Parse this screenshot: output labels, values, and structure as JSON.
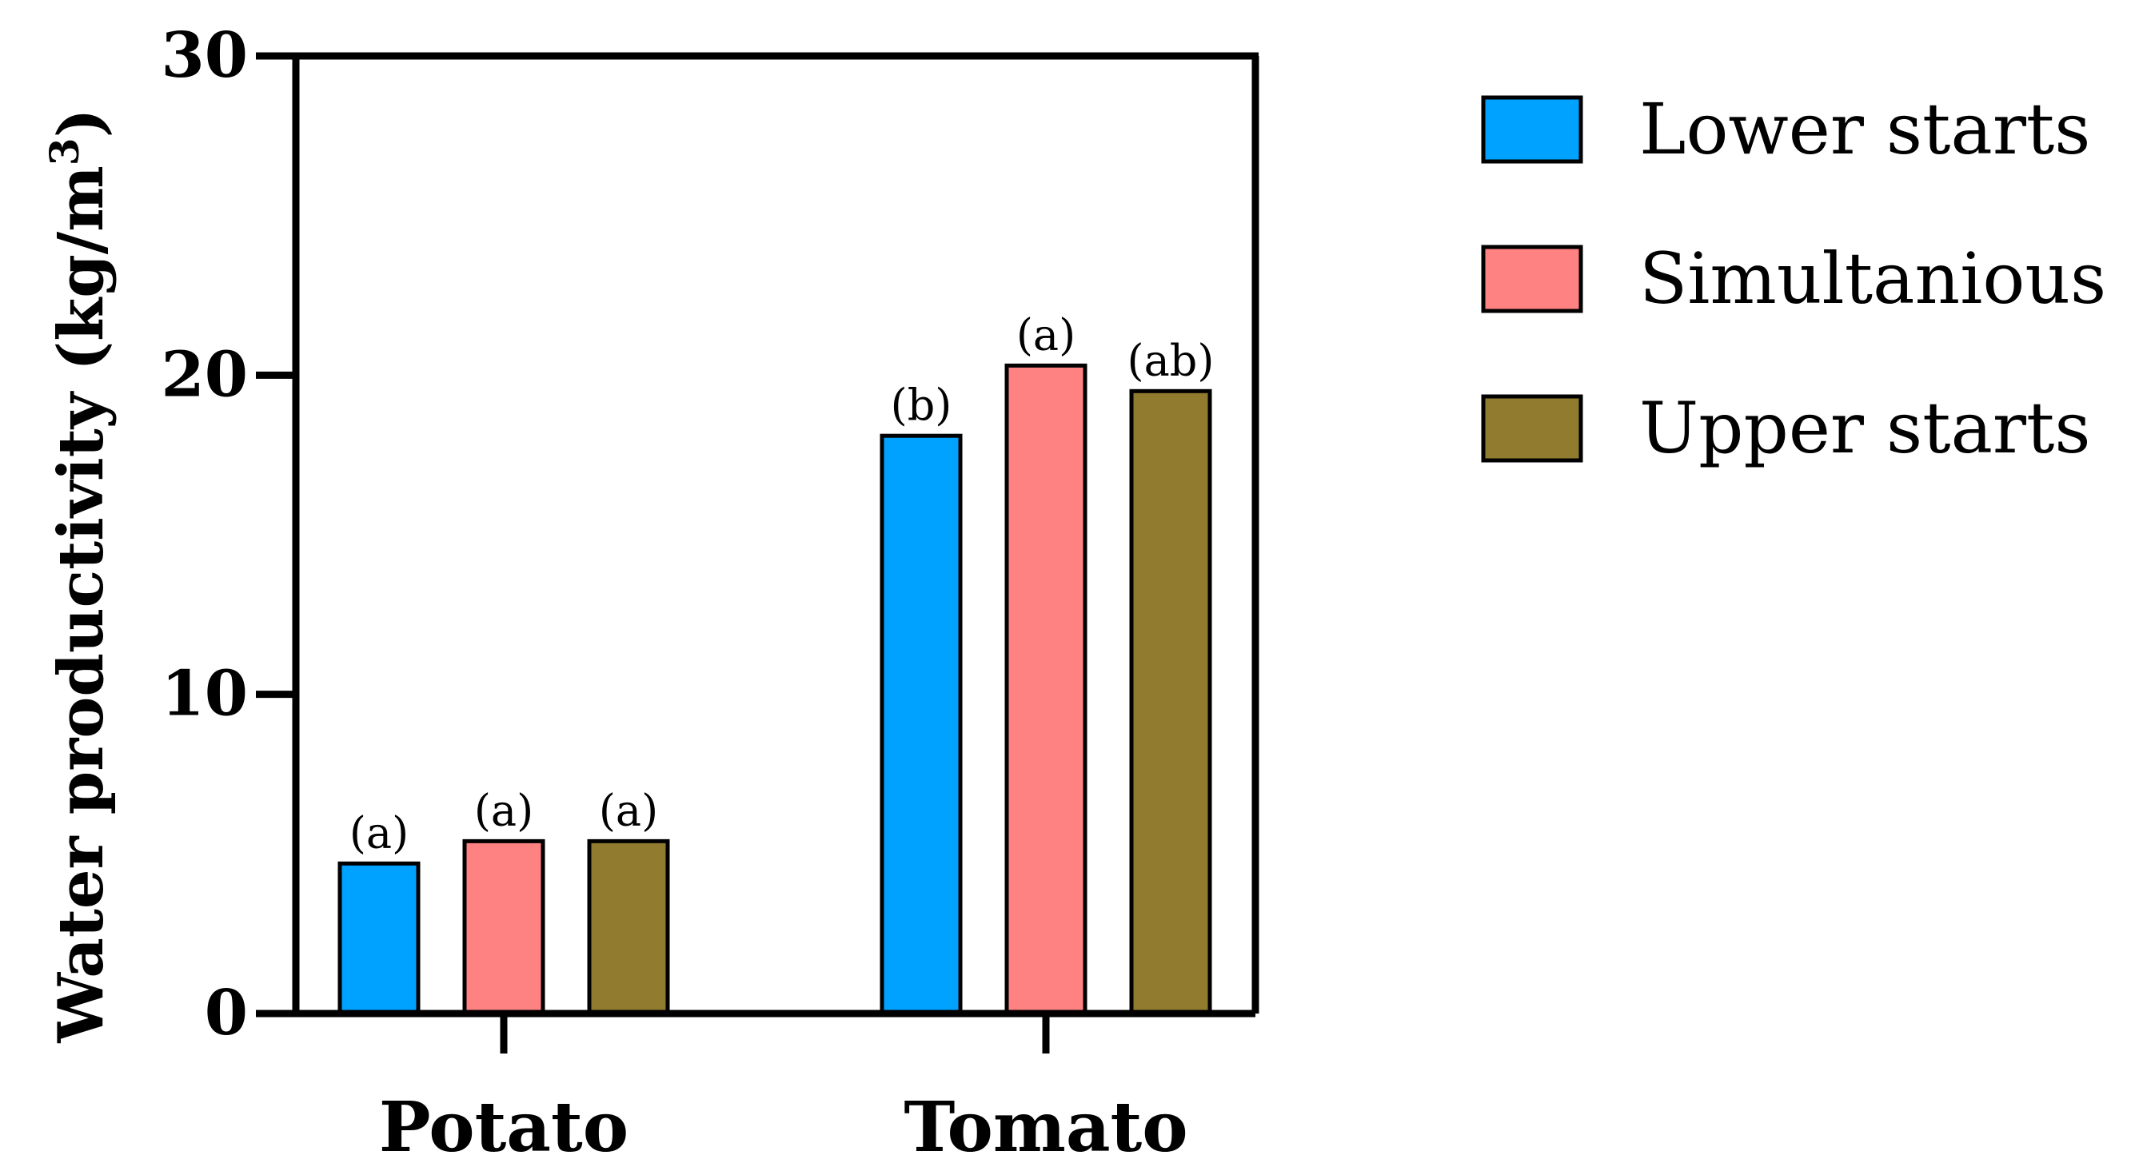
{
  "chart_data": {
    "type": "bar",
    "categories": [
      "Potato",
      "Tomato"
    ],
    "series": [
      {
        "name": "Lower starts",
        "color": "#00a2ff",
        "values": [
          4.7,
          18.1
        ],
        "labels": [
          "(a)",
          "(b)"
        ]
      },
      {
        "name": "Simultanious",
        "color": "#ff8282",
        "values": [
          5.4,
          20.3
        ],
        "labels": [
          "(a)",
          "(a)"
        ]
      },
      {
        "name": "Upper starts",
        "color": "#907b2f",
        "values": [
          5.4,
          19.5
        ],
        "labels": [
          "(a)",
          "(ab)"
        ]
      }
    ],
    "ylabel": "Water productivity (kg/m",
    "ylabel_superscript": "3",
    "ylabel_close": ")",
    "ylim": [
      0,
      30
    ],
    "yticks": [
      "0",
      "10",
      "20",
      "30"
    ],
    "legend": {
      "position": "right"
    }
  }
}
